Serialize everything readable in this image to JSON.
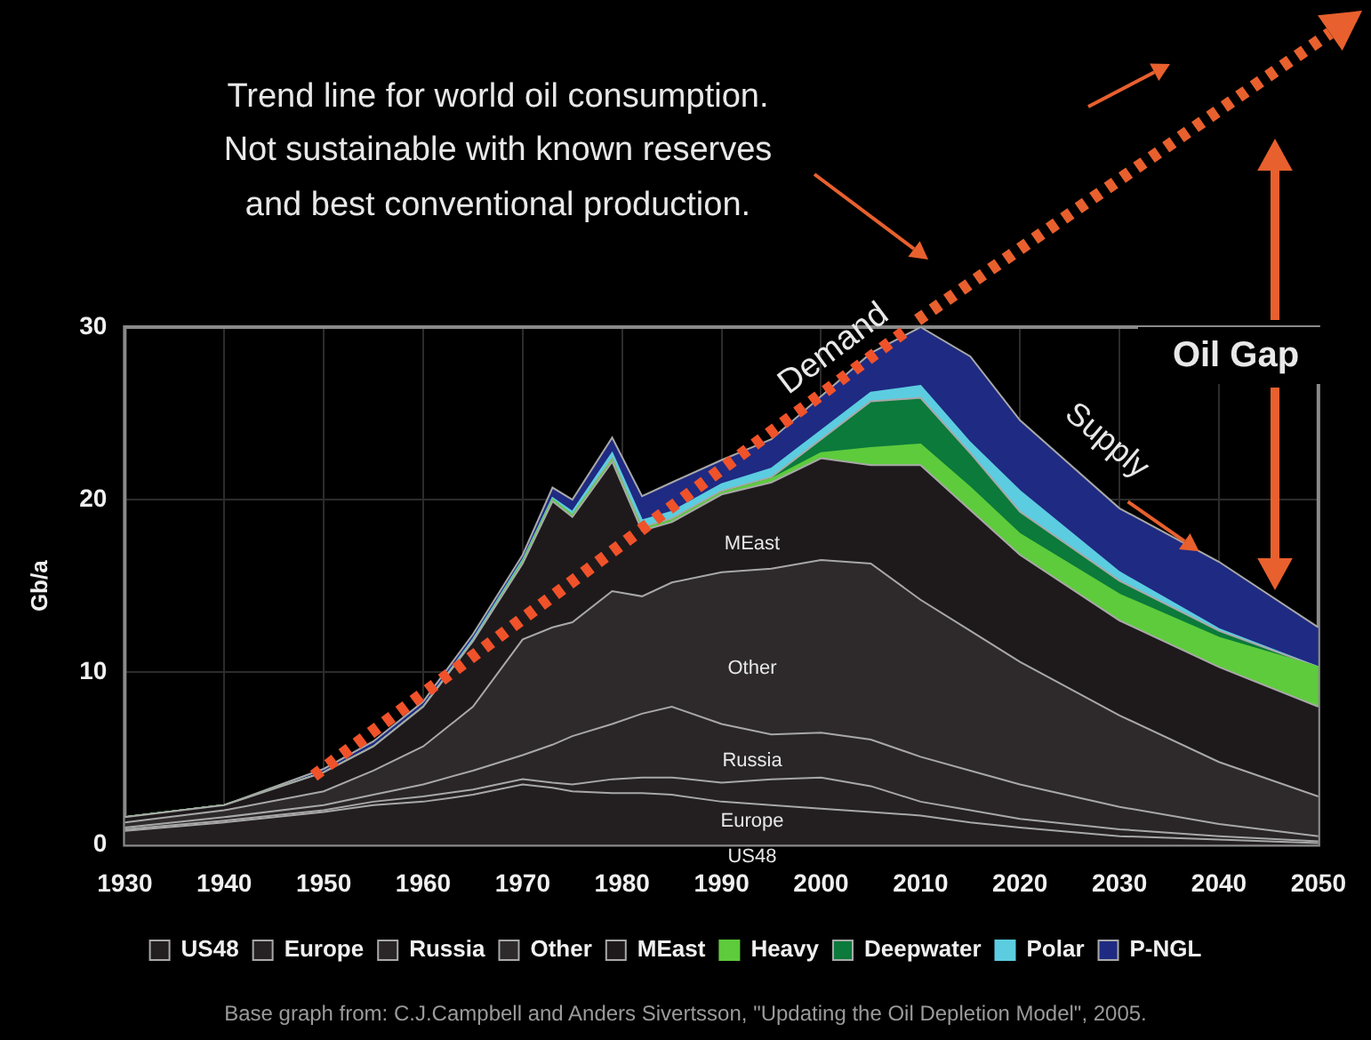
{
  "chart_data": {
    "type": "area",
    "stacked": true,
    "ylabel": "Gb/a",
    "xlim": [
      1930,
      2050
    ],
    "xticks": [
      1930,
      1940,
      1950,
      1960,
      1970,
      1980,
      1990,
      2000,
      2010,
      2020,
      2030,
      2040,
      2050
    ],
    "ylim": [
      0,
      30
    ],
    "yticks": [
      0,
      10,
      20,
      30
    ],
    "grid": true,
    "legend": "bottom",
    "x": [
      1930,
      1940,
      1950,
      1955,
      1960,
      1965,
      1970,
      1973,
      1975,
      1979,
      1982,
      1985,
      1990,
      1995,
      2000,
      2005,
      2010,
      2015,
      2020,
      2030,
      2040,
      2050
    ],
    "series": [
      {
        "name": "US48",
        "color": "#231f20",
        "values": [
          0.8,
          1.3,
          1.9,
          2.3,
          2.5,
          2.9,
          3.5,
          3.3,
          3.1,
          3.0,
          3.0,
          2.9,
          2.5,
          2.3,
          2.1,
          1.9,
          1.7,
          1.3,
          1.0,
          0.5,
          0.3,
          0.1
        ]
      },
      {
        "name": "Europe",
        "color": "#262223",
        "values": [
          0.1,
          0.1,
          0.1,
          0.2,
          0.3,
          0.3,
          0.3,
          0.3,
          0.4,
          0.8,
          0.9,
          1.0,
          1.1,
          1.5,
          1.8,
          1.5,
          0.8,
          0.7,
          0.5,
          0.4,
          0.2,
          0.1
        ]
      },
      {
        "name": "Russia",
        "color": "#2a2627",
        "values": [
          0.1,
          0.2,
          0.3,
          0.4,
          0.7,
          1.1,
          1.4,
          2.2,
          2.8,
          3.2,
          3.7,
          4.1,
          3.4,
          2.6,
          2.6,
          2.7,
          2.6,
          2.3,
          2.0,
          1.3,
          0.7,
          0.3
        ]
      },
      {
        "name": "Other",
        "color": "#2e2a2b",
        "values": [
          0.3,
          0.4,
          0.8,
          1.4,
          2.2,
          3.7,
          6.7,
          6.8,
          6.6,
          7.7,
          6.8,
          7.2,
          8.8,
          9.6,
          10.0,
          10.2,
          9.1,
          8.1,
          7.1,
          5.3,
          3.6,
          2.3
        ]
      },
      {
        "name": "MEast",
        "color": "#1e1a1b",
        "values": [
          0.3,
          0.3,
          1.1,
          1.4,
          2.3,
          3.8,
          4.4,
          7.3,
          6.1,
          7.5,
          3.8,
          3.5,
          4.5,
          5.0,
          5.9,
          5.7,
          7.8,
          7.0,
          6.2,
          5.5,
          5.5,
          5.2
        ]
      },
      {
        "name": "Heavy",
        "color": "#5ecb3c",
        "values": [
          0,
          0,
          0,
          0,
          0,
          0,
          0.1,
          0.1,
          0.1,
          0.1,
          0.1,
          0.1,
          0.1,
          0.2,
          0.3,
          1.0,
          1.2,
          1.3,
          1.2,
          1.5,
          1.7,
          2.3
        ]
      },
      {
        "name": "Deepwater",
        "color": "#0b7a3b",
        "values": [
          0,
          0,
          0,
          0,
          0,
          0,
          0,
          0,
          0,
          0.1,
          0.1,
          0.1,
          0.1,
          0.1,
          0.8,
          2.7,
          2.7,
          2.0,
          1.3,
          0.8,
          0.4,
          0
        ]
      },
      {
        "name": "Polar",
        "color": "#5ccde0",
        "values": [
          0,
          0,
          0,
          0,
          0,
          0.1,
          0.1,
          0.1,
          0.2,
          0.3,
          0.4,
          0.4,
          0.4,
          0.5,
          0.5,
          0.5,
          0.7,
          0.6,
          1.2,
          0.5,
          0.1,
          0
        ]
      },
      {
        "name": "P-NGL",
        "color": "#1f2a82",
        "values": [
          0,
          0,
          0.2,
          0.3,
          0.3,
          0.3,
          0.3,
          0.6,
          0.7,
          0.9,
          1.4,
          1.7,
          1.4,
          1.7,
          2.0,
          2.3,
          3.4,
          5.0,
          4.1,
          3.7,
          3.9,
          2.3
        ]
      },
      {
        "name": "Demand",
        "type": "line",
        "color": "#f0522a",
        "line_style": "dotted",
        "x": [
          1949,
          2009
        ],
        "values": [
          4,
          30
        ]
      }
    ],
    "annotations": [
      "Trend line for world oil consumption.\nNot sustainable with known reserves\nand best conventional production.",
      {
        "text": "Supply",
        "x": 2038,
        "y": 17
      },
      "Oil Gap",
      "Base graph from: C.J.Campbell and Anders Sivertsson, \"Updating the Oil Depletion Model\", 2005.",
      "MEast",
      "Other",
      "Russia",
      "Europe",
      "US48"
    ]
  }
}
